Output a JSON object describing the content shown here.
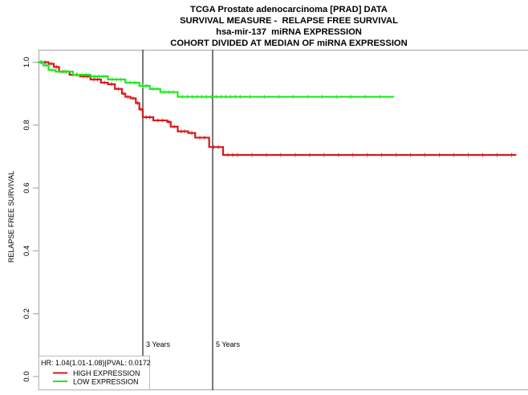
{
  "title_lines": [
    "TCGA Prostate adenocarcinoma [PRAD] DATA",
    "SURVIVAL MEASURE -  RELAPSE FREE SURVIVAL",
    "hsa-mir-137  miRNA EXPRESSION",
    "COHORT DIVIDED AT MEDIAN OF miRNA EXPRESSION"
  ],
  "chart_data": {
    "type": "line",
    "subtype": "kaplan-meier step",
    "title": "TCGA Prostate adenocarcinoma [PRAD] DATA / SURVIVAL MEASURE - RELAPSE FREE SURVIVAL / hsa-mir-137 miRNA EXPRESSION / COHORT DIVIDED AT MEDIAN OF miRNA EXPRESSION",
    "xlabel": "",
    "ylabel": "RELAPSE FREE SURVIVAL",
    "ylim": [
      0,
      1.0
    ],
    "yticks": [
      "0.0",
      "0.2",
      "0.4",
      "0.6",
      "0.8",
      "1.0"
    ],
    "xunit": "years",
    "grid": false,
    "legend_position": "bottom-left",
    "annotation": "HR: 1.04(1.01-1.08)|PVAL: 0.0172",
    "vlines": [
      {
        "x": 3,
        "label": "3 Years"
      },
      {
        "x": 5,
        "label": "5 Years"
      }
    ],
    "series": [
      {
        "name": "HIGH EXPRESSION",
        "color": "#d7191c",
        "x": [
          0,
          0.3,
          0.45,
          0.6,
          0.9,
          1.2,
          1.5,
          1.8,
          2.0,
          2.2,
          2.4,
          2.5,
          2.65,
          2.8,
          2.9,
          3.0,
          3.3,
          3.7,
          3.8,
          4.0,
          4.3,
          4.5,
          4.9,
          5.3,
          13.7
        ],
        "y": [
          1.0,
          0.995,
          0.985,
          0.97,
          0.96,
          0.955,
          0.945,
          0.935,
          0.93,
          0.915,
          0.9,
          0.89,
          0.885,
          0.87,
          0.85,
          0.825,
          0.815,
          0.81,
          0.795,
          0.78,
          0.775,
          0.76,
          0.73,
          0.705,
          0.705
        ]
      },
      {
        "name": "LOW EXPRESSION",
        "color": "#1ee81e",
        "x": [
          0,
          0.15,
          0.3,
          0.5,
          1.0,
          1.5,
          2.0,
          2.5,
          2.9,
          3.2,
          3.5,
          4.0,
          10.2
        ],
        "y": [
          1.0,
          0.99,
          0.975,
          0.97,
          0.96,
          0.955,
          0.945,
          0.935,
          0.925,
          0.915,
          0.905,
          0.89,
          0.89
        ]
      }
    ]
  }
}
